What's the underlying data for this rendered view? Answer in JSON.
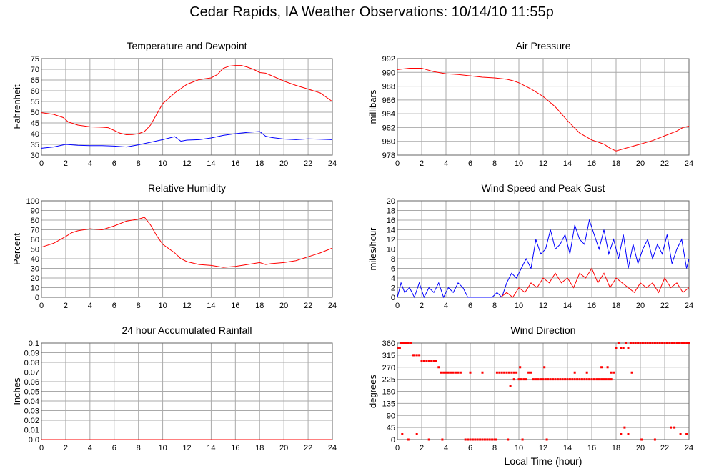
{
  "title": "Cedar Rapids, IA Weather Observations: 10/14/10 11:55p",
  "x_axis_label": "Local Time (hour)",
  "chart_data": [
    {
      "id": "temp",
      "type": "line",
      "title": "Temperature and Dewpoint",
      "xlabel": "",
      "ylabel": "Fahrenheit",
      "xlim": [
        0,
        24
      ],
      "ylim": [
        30,
        75
      ],
      "xticks": [
        0,
        2,
        4,
        6,
        8,
        10,
        12,
        14,
        16,
        18,
        20,
        22,
        24
      ],
      "yticks": [
        30,
        35,
        40,
        45,
        50,
        55,
        60,
        65,
        70,
        75
      ],
      "ytick_labels": [
        "30",
        "35",
        "40",
        "45",
        "50",
        "55",
        "60",
        "65",
        "70",
        "75"
      ],
      "grid": true,
      "series": [
        {
          "color": "#ff0000",
          "x": [
            0,
            1,
            1.8,
            2.2,
            3,
            4,
            5,
            5.5,
            6,
            6.5,
            7,
            7.5,
            8,
            8.5,
            9,
            9.5,
            10,
            11,
            12,
            13,
            14,
            14.5,
            15,
            15.5,
            16,
            16.5,
            17,
            17.5,
            18,
            18.5,
            19,
            20,
            21,
            22,
            23,
            24
          ],
          "y": [
            49.8,
            49,
            47.5,
            45.5,
            44,
            43.2,
            43,
            42.8,
            41.5,
            40.2,
            39.5,
            39.6,
            40,
            41,
            44,
            49,
            54,
            59,
            63,
            65.2,
            66,
            67.5,
            70.5,
            71.5,
            71.8,
            71.8,
            71,
            70,
            68.5,
            68.2,
            67,
            64.5,
            62.5,
            60.8,
            59,
            55
          ]
        },
        {
          "color": "#0000ff",
          "x": [
            0,
            1,
            2,
            3,
            4,
            5,
            6,
            7,
            8,
            9,
            10,
            11,
            11.5,
            12,
            13,
            14,
            15,
            16,
            17,
            18,
            18.5,
            19,
            20,
            21,
            22,
            23,
            24
          ],
          "y": [
            33.2,
            33.8,
            35,
            34.6,
            34.4,
            34.4,
            34.2,
            33.8,
            34.8,
            36,
            37.2,
            38.6,
            36.5,
            37,
            37.2,
            38,
            39.2,
            40,
            40.6,
            41,
            38.8,
            38.2,
            37.5,
            37.2,
            37.6,
            37.4,
            37.2
          ]
        }
      ]
    },
    {
      "id": "pressure",
      "type": "line",
      "title": "Air Pressure",
      "xlabel": "",
      "ylabel": "millibars",
      "xlim": [
        0,
        24
      ],
      "ylim": [
        978,
        992
      ],
      "xticks": [
        0,
        2,
        4,
        6,
        8,
        10,
        12,
        14,
        16,
        18,
        20,
        22,
        24
      ],
      "yticks": [
        978,
        980,
        982,
        984,
        986,
        988,
        990,
        992
      ],
      "ytick_labels": [
        "978",
        "980",
        "982",
        "984",
        "986",
        "988",
        "990",
        "992"
      ],
      "grid": true,
      "series": [
        {
          "color": "#ff0000",
          "x": [
            0,
            1,
            2,
            3,
            4,
            5,
            6,
            7,
            8,
            9,
            9.5,
            10,
            11,
            12,
            13,
            14,
            15,
            16,
            17,
            17.5,
            18,
            19,
            20,
            21,
            22,
            23,
            23.5,
            24
          ],
          "y": [
            990.4,
            990.6,
            990.6,
            990.1,
            989.8,
            989.7,
            989.5,
            989.3,
            989.2,
            989,
            988.8,
            988.5,
            987.6,
            986.5,
            985,
            983,
            981.2,
            980.2,
            979.6,
            979,
            978.6,
            979.1,
            979.6,
            980.1,
            980.8,
            981.5,
            982,
            982.2
          ]
        }
      ]
    },
    {
      "id": "rh",
      "type": "line",
      "title": "Relative Humidity",
      "xlabel": "",
      "ylabel": "Percent",
      "xlim": [
        0,
        24
      ],
      "ylim": [
        0,
        100
      ],
      "xticks": [
        0,
        2,
        4,
        6,
        8,
        10,
        12,
        14,
        16,
        18,
        20,
        22,
        24
      ],
      "yticks": [
        0,
        10,
        20,
        30,
        40,
        50,
        60,
        70,
        80,
        90,
        100
      ],
      "ytick_labels": [
        "0",
        "10",
        "20",
        "30",
        "40",
        "50",
        "60",
        "70",
        "80",
        "90",
        "100"
      ],
      "grid": true,
      "series": [
        {
          "color": "#ff0000",
          "x": [
            0,
            1,
            2,
            2.5,
            3,
            4,
            5,
            6,
            7,
            8,
            8.5,
            9,
            9.5,
            10,
            11,
            11.5,
            12,
            13,
            14,
            15,
            16,
            17,
            18,
            18.5,
            19,
            20,
            21,
            22,
            23,
            24
          ],
          "y": [
            52,
            56,
            63,
            67,
            69,
            71,
            70,
            74,
            79,
            81,
            83,
            75,
            64,
            55,
            46,
            40,
            37,
            34,
            33,
            31,
            32,
            34,
            36,
            34,
            35,
            36,
            38,
            42,
            46,
            51
          ]
        }
      ]
    },
    {
      "id": "wind",
      "type": "line",
      "title": "Wind Speed and Peak Gust",
      "xlabel": "",
      "ylabel": "miles/hour",
      "xlim": [
        0,
        24
      ],
      "ylim": [
        0,
        20
      ],
      "xticks": [
        0,
        2,
        4,
        6,
        8,
        10,
        12,
        14,
        16,
        18,
        20,
        22,
        24
      ],
      "yticks": [
        0,
        2,
        4,
        6,
        8,
        10,
        12,
        14,
        16,
        18,
        20
      ],
      "ytick_labels": [
        "0",
        "2",
        "4",
        "6",
        "8",
        "10",
        "12",
        "14",
        "16",
        "18",
        "20"
      ],
      "grid": true,
      "series": [
        {
          "color": "#0000ff",
          "x": [
            0,
            0.3,
            0.6,
            1,
            1.4,
            1.8,
            2.2,
            2.6,
            3,
            3.4,
            3.8,
            4.2,
            4.6,
            5,
            5.4,
            5.8,
            6.2,
            6.6,
            7,
            7.4,
            7.8,
            8.2,
            8.6,
            9,
            9.4,
            9.8,
            10.2,
            10.6,
            11,
            11.4,
            11.8,
            12.2,
            12.6,
            13,
            13.4,
            13.8,
            14.2,
            14.6,
            15,
            15.4,
            15.8,
            16.2,
            16.6,
            17,
            17.4,
            17.8,
            18.2,
            18.6,
            19,
            19.4,
            19.8,
            20.2,
            20.6,
            21,
            21.4,
            21.8,
            22.2,
            22.6,
            23,
            23.4,
            23.8,
            24
          ],
          "y": [
            0,
            3,
            1,
            2,
            0,
            3,
            0,
            2,
            1,
            3,
            0,
            2,
            1,
            3,
            2,
            0,
            0,
            0,
            0,
            0,
            0,
            1,
            0,
            3,
            5,
            4,
            6,
            8,
            6,
            12,
            9,
            10,
            14,
            10,
            11,
            13,
            9,
            15,
            12,
            11,
            16,
            13,
            10,
            14,
            9,
            12,
            8,
            13,
            6,
            11,
            7,
            10,
            12,
            8,
            11,
            9,
            13,
            7,
            10,
            12,
            6,
            8
          ]
        },
        {
          "color": "#ff0000",
          "x": [
            8.5,
            9,
            9.5,
            10,
            10.5,
            11,
            11.5,
            12,
            12.5,
            13,
            13.5,
            14,
            14.5,
            15,
            15.5,
            16,
            16.5,
            17,
            17.5,
            18,
            18.5,
            19,
            19.5,
            20,
            20.5,
            21,
            21.5,
            22,
            22.5,
            23,
            23.5,
            24
          ],
          "y": [
            0,
            1,
            0,
            2,
            1,
            3,
            2,
            4,
            3,
            5,
            3,
            4,
            2,
            5,
            4,
            6,
            3,
            5,
            2,
            4,
            3,
            2,
            1,
            3,
            2,
            3,
            1,
            4,
            2,
            3,
            1,
            2
          ]
        }
      ]
    },
    {
      "id": "rain",
      "type": "line",
      "title": "24 hour Accumulated Rainfall",
      "xlabel": "",
      "ylabel": "Inches",
      "xlim": [
        0,
        24
      ],
      "ylim": [
        0,
        0.1
      ],
      "xticks": [
        0,
        2,
        4,
        6,
        8,
        10,
        12,
        14,
        16,
        18,
        20,
        22,
        24
      ],
      "yticks": [
        0,
        0.01,
        0.02,
        0.03,
        0.04,
        0.05,
        0.06,
        0.07,
        0.08,
        0.09,
        0.1
      ],
      "ytick_labels": [
        "0.0",
        "0.01",
        "0.02",
        "0.03",
        "0.04",
        "0.05",
        "0.06",
        "0.07",
        "0.08",
        "0.09",
        "0.1"
      ],
      "grid": true,
      "series": [
        {
          "color": "#ff0000",
          "x": [
            0,
            24
          ],
          "y": [
            0,
            0
          ]
        }
      ]
    },
    {
      "id": "dir",
      "type": "scatter",
      "title": "Wind Direction",
      "xlabel": "Local Time (hour)",
      "ylabel": "degrees",
      "xlim": [
        0,
        24
      ],
      "ylim": [
        0,
        360
      ],
      "xticks": [
        0,
        2,
        4,
        6,
        8,
        10,
        12,
        14,
        16,
        18,
        20,
        22,
        24
      ],
      "yticks": [
        0,
        45,
        90,
        135,
        180,
        225,
        270,
        315,
        360
      ],
      "ytick_labels": [
        "0",
        "45",
        "90",
        "135",
        "180",
        "225",
        "270",
        "315",
        "360"
      ],
      "grid": true,
      "series": [
        {
          "color": "#ff0000",
          "x": [
            0.1,
            0.2,
            0.3,
            0.5,
            0.7,
            0.9,
            1.1,
            1.3,
            1.4,
            1.6,
            1.8,
            2,
            2.2,
            2.4,
            2.6,
            2.8,
            3,
            3.2,
            3.4,
            3.6,
            3.8,
            4,
            4.2,
            4.4,
            4.6,
            4.8,
            5,
            5.2,
            5.6,
            5.8,
            6,
            6.2,
            6.4,
            6.6,
            6.8,
            7,
            7.2,
            7.4,
            7.6,
            7.8,
            8,
            8.2,
            8.4,
            8.6,
            8.8,
            9,
            9.2,
            9.4,
            9.6,
            9.8,
            10,
            10.2,
            10.4,
            10.6,
            10.8,
            11,
            11.2,
            11.4,
            11.6,
            11.8,
            12,
            12.2,
            12.4,
            12.6,
            12.8,
            13,
            13.2,
            13.4,
            13.6,
            13.8,
            14,
            14.2,
            14.4,
            14.6,
            14.8,
            15,
            15.2,
            15.4,
            15.6,
            15.8,
            16,
            16.2,
            16.4,
            16.6,
            16.8,
            17,
            17.2,
            17.4,
            17.6,
            17.8,
            18,
            18.2,
            18.4,
            18.6,
            18.8,
            19,
            19.2,
            19.4,
            19.6,
            19.8,
            20,
            20.2,
            20.4,
            20.6,
            20.8,
            21,
            21.2,
            21.4,
            21.6,
            21.8,
            22,
            22.2,
            22.4,
            22.6,
            22.8,
            23,
            23.2,
            23.4,
            23.6,
            23.8,
            24,
            0.4,
            0.9,
            1.6,
            2.6,
            3.7,
            6,
            7,
            8.1,
            9.1,
            10.3,
            12.3,
            16.8,
            18.4,
            18.7,
            19,
            20.1,
            21.2,
            22.5,
            22.8,
            23.3,
            23.8,
            10.1,
            12.1,
            17.3,
            19.3,
            17.6,
            9.3,
            9.6,
            14.6,
            15.6
          ],
          "y": [
            340,
            340,
            360,
            360,
            360,
            360,
            360,
            315,
            315,
            315,
            315,
            292,
            292,
            292,
            292,
            292,
            292,
            292,
            270,
            250,
            250,
            250,
            250,
            250,
            250,
            250,
            250,
            250,
            0,
            0,
            0,
            0,
            0,
            0,
            0,
            0,
            0,
            0,
            0,
            0,
            0,
            250,
            250,
            250,
            250,
            250,
            250,
            250,
            250,
            250,
            225,
            225,
            225,
            225,
            250,
            250,
            225,
            225,
            225,
            225,
            225,
            225,
            225,
            225,
            225,
            225,
            225,
            225,
            225,
            225,
            225,
            225,
            225,
            225,
            225,
            225,
            225,
            225,
            225,
            225,
            225,
            225,
            225,
            225,
            225,
            225,
            225,
            225,
            225,
            250,
            340,
            360,
            340,
            340,
            360,
            340,
            360,
            360,
            360,
            360,
            360,
            360,
            360,
            360,
            360,
            360,
            360,
            360,
            360,
            360,
            360,
            360,
            360,
            360,
            360,
            360,
            360,
            360,
            360,
            360,
            360,
            20,
            0,
            20,
            0,
            0,
            250,
            250,
            0,
            0,
            0,
            0,
            270,
            20,
            45,
            20,
            0,
            0,
            45,
            45,
            20,
            20,
            270,
            270,
            270,
            250,
            250,
            200,
            225,
            250,
            250
          ]
        }
      ]
    }
  ]
}
